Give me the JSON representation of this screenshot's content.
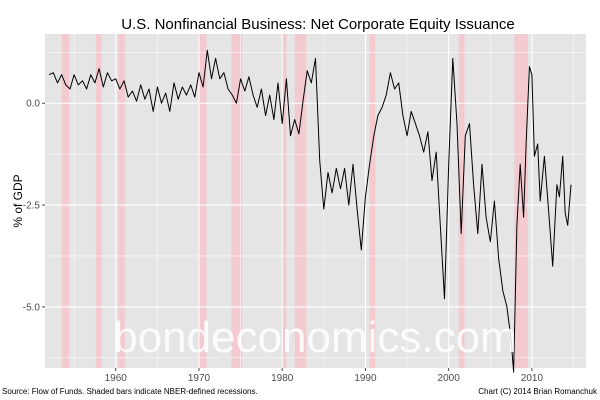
{
  "chart_data": {
    "type": "line",
    "title": "U.S. Nonfinancial Business: Net Corporate Equity Issuance",
    "xlabel": "",
    "ylabel": "% of GDP",
    "xlim": [
      1951.5,
      2016.5
    ],
    "ylim": [
      -6.5,
      1.7
    ],
    "x_ticks": [
      1960,
      1970,
      1980,
      1990,
      2000,
      2010
    ],
    "x_tick_labels": [
      "1960",
      "1970",
      "1980",
      "1990",
      "2000",
      "2010"
    ],
    "y_ticks": [
      0.0,
      -2.5,
      -5.0
    ],
    "y_tick_labels": [
      "0.0",
      "-2.5",
      "-5.0"
    ],
    "grid": true,
    "background_color": "#e5e5e5",
    "line_color": "#000000",
    "recession_color": "#f4c6cc",
    "recessions": [
      [
        1953.5,
        1954.4
      ],
      [
        1957.6,
        1958.3
      ],
      [
        1960.3,
        1961.1
      ],
      [
        1969.9,
        1970.9
      ],
      [
        1973.9,
        1975.2
      ],
      [
        1980.0,
        1980.5
      ],
      [
        1981.5,
        1982.9
      ],
      [
        1990.5,
        1991.2
      ],
      [
        2001.2,
        2001.9
      ],
      [
        2007.9,
        2009.5
      ]
    ],
    "series": [
      {
        "points": [
          [
            1952.0,
            0.7
          ],
          [
            1952.5,
            0.75
          ],
          [
            1953.0,
            0.5
          ],
          [
            1953.5,
            0.7
          ],
          [
            1954.0,
            0.45
          ],
          [
            1954.5,
            0.35
          ],
          [
            1955.0,
            0.7
          ],
          [
            1955.5,
            0.45
          ],
          [
            1956.0,
            0.55
          ],
          [
            1956.5,
            0.35
          ],
          [
            1957.0,
            0.7
          ],
          [
            1957.5,
            0.5
          ],
          [
            1958.0,
            0.85
          ],
          [
            1958.5,
            0.4
          ],
          [
            1959.0,
            0.75
          ],
          [
            1959.5,
            0.55
          ],
          [
            1960.0,
            0.6
          ],
          [
            1960.5,
            0.35
          ],
          [
            1961.0,
            0.55
          ],
          [
            1961.5,
            0.15
          ],
          [
            1962.0,
            0.3
          ],
          [
            1962.5,
            0.05
          ],
          [
            1963.0,
            0.45
          ],
          [
            1963.5,
            0.1
          ],
          [
            1964.0,
            0.35
          ],
          [
            1964.5,
            -0.2
          ],
          [
            1965.0,
            0.4
          ],
          [
            1965.5,
            0.0
          ],
          [
            1966.0,
            0.25
          ],
          [
            1966.5,
            -0.2
          ],
          [
            1967.0,
            0.5
          ],
          [
            1967.5,
            0.1
          ],
          [
            1968.0,
            0.4
          ],
          [
            1968.5,
            0.2
          ],
          [
            1969.0,
            0.45
          ],
          [
            1969.5,
            0.15
          ],
          [
            1970.0,
            0.75
          ],
          [
            1970.5,
            0.4
          ],
          [
            1971.0,
            1.3
          ],
          [
            1971.5,
            0.6
          ],
          [
            1972.0,
            1.1
          ],
          [
            1972.5,
            0.6
          ],
          [
            1973.0,
            0.75
          ],
          [
            1973.5,
            0.35
          ],
          [
            1974.0,
            0.2
          ],
          [
            1974.5,
            0.0
          ],
          [
            1975.0,
            0.6
          ],
          [
            1975.5,
            0.3
          ],
          [
            1976.0,
            0.65
          ],
          [
            1976.5,
            0.2
          ],
          [
            1977.0,
            -0.1
          ],
          [
            1977.5,
            0.35
          ],
          [
            1978.0,
            -0.3
          ],
          [
            1978.5,
            0.2
          ],
          [
            1979.0,
            -0.4
          ],
          [
            1979.5,
            0.5
          ],
          [
            1980.0,
            -0.5
          ],
          [
            1980.5,
            0.6
          ],
          [
            1981.0,
            -0.8
          ],
          [
            1981.5,
            -0.4
          ],
          [
            1982.0,
            -0.75
          ],
          [
            1982.5,
            0.05
          ],
          [
            1983.0,
            0.8
          ],
          [
            1983.5,
            0.5
          ],
          [
            1984.0,
            1.1
          ],
          [
            1984.5,
            -1.4
          ],
          [
            1985.0,
            -2.6
          ],
          [
            1985.5,
            -1.7
          ],
          [
            1986.0,
            -2.2
          ],
          [
            1986.5,
            -1.6
          ],
          [
            1987.0,
            -2.1
          ],
          [
            1987.5,
            -1.6
          ],
          [
            1988.0,
            -2.5
          ],
          [
            1988.5,
            -1.5
          ],
          [
            1989.0,
            -2.6
          ],
          [
            1989.5,
            -3.6
          ],
          [
            1990.0,
            -2.3
          ],
          [
            1990.5,
            -1.5
          ],
          [
            1991.0,
            -0.8
          ],
          [
            1991.5,
            -0.3
          ],
          [
            1992.0,
            -0.1
          ],
          [
            1992.5,
            0.2
          ],
          [
            1993.0,
            0.75
          ],
          [
            1993.5,
            0.35
          ],
          [
            1994.0,
            0.5
          ],
          [
            1994.5,
            -0.3
          ],
          [
            1995.0,
            -0.8
          ],
          [
            1995.5,
            -0.2
          ],
          [
            1996.0,
            -0.5
          ],
          [
            1996.5,
            -0.8
          ],
          [
            1997.0,
            -1.2
          ],
          [
            1997.5,
            -0.7
          ],
          [
            1998.0,
            -1.9
          ],
          [
            1998.5,
            -1.2
          ],
          [
            1999.0,
            -3.0
          ],
          [
            1999.5,
            -4.8
          ],
          [
            2000.0,
            -1.5
          ],
          [
            2000.5,
            1.1
          ],
          [
            2001.0,
            -0.5
          ],
          [
            2001.5,
            -3.2
          ],
          [
            2002.0,
            -0.8
          ],
          [
            2002.5,
            -0.5
          ],
          [
            2003.0,
            -2.0
          ],
          [
            2003.5,
            -3.2
          ],
          [
            2004.0,
            -1.5
          ],
          [
            2004.5,
            -2.8
          ],
          [
            2005.0,
            -3.4
          ],
          [
            2005.5,
            -2.4
          ],
          [
            2006.0,
            -3.8
          ],
          [
            2006.5,
            -4.6
          ],
          [
            2007.0,
            -5.0
          ],
          [
            2007.5,
            -5.8
          ],
          [
            2007.8,
            -6.6
          ],
          [
            2008.2,
            -3.0
          ],
          [
            2008.6,
            -1.5
          ],
          [
            2009.0,
            -2.8
          ],
          [
            2009.3,
            -1.0
          ],
          [
            2009.7,
            0.9
          ],
          [
            2010.0,
            0.7
          ],
          [
            2010.3,
            -1.3
          ],
          [
            2010.7,
            -1.0
          ],
          [
            2011.0,
            -2.4
          ],
          [
            2011.5,
            -1.3
          ],
          [
            2012.0,
            -2.6
          ],
          [
            2012.5,
            -4.0
          ],
          [
            2013.0,
            -2.0
          ],
          [
            2013.3,
            -2.3
          ],
          [
            2013.7,
            -1.3
          ],
          [
            2014.0,
            -2.7
          ],
          [
            2014.3,
            -3.0
          ],
          [
            2014.7,
            -2.0
          ]
        ]
      }
    ],
    "source_caption": "Source: Flow of Funds. Shaded bars indicate NBER-defined recessions.",
    "credit_caption": "Chart (C) 2014 Brian Romanchuk",
    "watermark": "bondeconomics.com"
  }
}
